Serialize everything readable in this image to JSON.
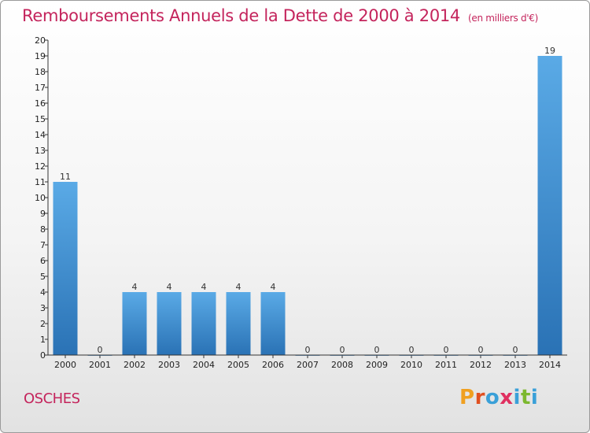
{
  "header": {
    "title": "Remboursements Annuels de la Dette de 2000 à 2014",
    "unit": "(en milliers d'€)"
  },
  "footer": {
    "city": "OSCHES",
    "logo": "Proxiti"
  },
  "colors": {
    "title": "#c4245c",
    "bar_top": "#5aaae6",
    "bar_bottom": "#2a72b5",
    "logo_letters": [
      "#f0a020",
      "#e05020",
      "#3aa0d8",
      "#e03060",
      "#3aa0d8",
      "#7cb82f",
      "#3aa0d8"
    ]
  },
  "chart_data": {
    "type": "bar",
    "categories": [
      "2000",
      "2001",
      "2002",
      "2003",
      "2004",
      "2005",
      "2006",
      "2007",
      "2008",
      "2009",
      "2010",
      "2011",
      "2012",
      "2013",
      "2014"
    ],
    "values": [
      11,
      0,
      4,
      4,
      4,
      4,
      4,
      0,
      0,
      0,
      0,
      0,
      0,
      0,
      19
    ],
    "data_labels": [
      "11",
      "0",
      "4",
      "4",
      "4",
      "4",
      "4",
      "0",
      "0",
      "0",
      "0",
      "0",
      "0",
      "0",
      "19"
    ],
    "yticks": [
      "0",
      "1",
      "2",
      "3",
      "4",
      "5",
      "6",
      "7",
      "8",
      "9",
      "10",
      "11",
      "12",
      "13",
      "14",
      "15",
      "16",
      "17",
      "18",
      "19",
      "20"
    ],
    "ylim": [
      0,
      20
    ],
    "grid": false,
    "xlabel": "",
    "ylabel": ""
  }
}
